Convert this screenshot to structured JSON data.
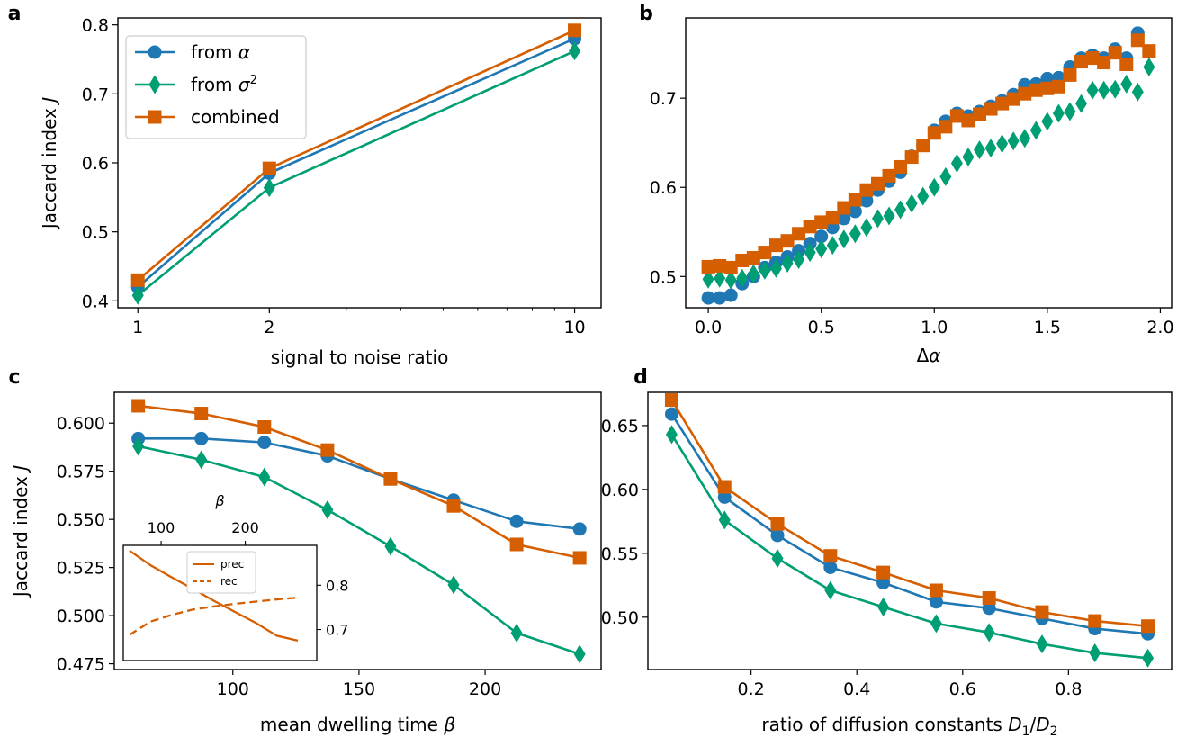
{
  "colors": {
    "alpha": "#1f77b4",
    "sigma": "#009e73",
    "combined": "#d55e00"
  },
  "chart_data": [
    {
      "id": "a",
      "panel_label": "a",
      "type": "line",
      "xscale": "log",
      "xlabel": "signal to noise ratio",
      "ylabel": "Jaccard index J",
      "xlim": [
        0.9,
        11.5
      ],
      "ylim": [
        0.39,
        0.81
      ],
      "xticks": [
        1,
        2,
        10
      ],
      "xtick_labels": [
        "1",
        "2",
        "10"
      ],
      "yticks": [
        0.4,
        0.5,
        0.6,
        0.7,
        0.8
      ],
      "ytick_labels": [
        "0.4",
        "0.5",
        "0.6",
        "0.7",
        "0.8"
      ],
      "legend": {
        "position": "top-left",
        "entries": [
          "from α",
          "from σ²",
          "combined"
        ]
      },
      "series": [
        {
          "key": "alpha",
          "name": "from α",
          "x": [
            1,
            2,
            10
          ],
          "y": [
            0.42,
            0.585,
            0.78
          ]
        },
        {
          "key": "sigma",
          "name": "from σ²",
          "x": [
            1,
            2,
            10
          ],
          "y": [
            0.408,
            0.564,
            0.762
          ]
        },
        {
          "key": "combined",
          "name": "combined",
          "x": [
            1,
            2,
            10
          ],
          "y": [
            0.43,
            0.592,
            0.792
          ]
        }
      ]
    },
    {
      "id": "b",
      "panel_label": "b",
      "type": "scatter",
      "xlabel": "Δα",
      "ylabel": "",
      "xlim": [
        -0.1,
        2.05
      ],
      "ylim": [
        0.465,
        0.79
      ],
      "xticks": [
        0.0,
        0.5,
        1.0,
        1.5,
        2.0
      ],
      "xtick_labels": [
        "0.0",
        "0.5",
        "1.0",
        "1.5",
        "2.0"
      ],
      "yticks": [
        0.5,
        0.6,
        0.7
      ],
      "ytick_labels": [
        "0.5",
        "0.6",
        "0.7"
      ],
      "series": [
        {
          "key": "alpha",
          "x": [
            0.0,
            0.05,
            0.1,
            0.15,
            0.2,
            0.25,
            0.3,
            0.35,
            0.4,
            0.45,
            0.5,
            0.55,
            0.6,
            0.65,
            0.7,
            0.75,
            0.8,
            0.85,
            0.9,
            0.95,
            1.0,
            1.05,
            1.1,
            1.15,
            1.2,
            1.25,
            1.3,
            1.35,
            1.4,
            1.45,
            1.5,
            1.55,
            1.6,
            1.65,
            1.7,
            1.75,
            1.8,
            1.85,
            1.9,
            1.95
          ],
          "y": [
            0.476,
            0.476,
            0.479,
            0.492,
            0.5,
            0.51,
            0.516,
            0.522,
            0.529,
            0.537,
            0.545,
            0.555,
            0.565,
            0.573,
            0.585,
            0.597,
            0.607,
            0.617,
            0.635,
            0.647,
            0.664,
            0.674,
            0.683,
            0.68,
            0.685,
            0.691,
            0.697,
            0.704,
            0.715,
            0.716,
            0.722,
            0.723,
            0.735,
            0.745,
            0.748,
            0.745,
            0.755,
            0.745,
            0.773,
            0.752
          ]
        },
        {
          "key": "sigma",
          "x": [
            0.0,
            0.05,
            0.1,
            0.15,
            0.2,
            0.25,
            0.3,
            0.35,
            0.4,
            0.45,
            0.5,
            0.55,
            0.6,
            0.65,
            0.7,
            0.75,
            0.8,
            0.85,
            0.9,
            0.95,
            1.0,
            1.05,
            1.1,
            1.15,
            1.2,
            1.25,
            1.3,
            1.35,
            1.4,
            1.45,
            1.5,
            1.55,
            1.6,
            1.65,
            1.7,
            1.75,
            1.8,
            1.85,
            1.9,
            1.95
          ],
          "y": [
            0.497,
            0.498,
            0.496,
            0.498,
            0.503,
            0.507,
            0.509,
            0.515,
            0.519,
            0.527,
            0.531,
            0.535,
            0.542,
            0.548,
            0.555,
            0.565,
            0.568,
            0.575,
            0.582,
            0.59,
            0.6,
            0.612,
            0.627,
            0.634,
            0.642,
            0.644,
            0.649,
            0.652,
            0.655,
            0.664,
            0.674,
            0.683,
            0.685,
            0.694,
            0.709,
            0.709,
            0.71,
            0.716,
            0.707,
            0.735
          ]
        },
        {
          "key": "combined",
          "x": [
            0.0,
            0.05,
            0.1,
            0.15,
            0.2,
            0.25,
            0.3,
            0.35,
            0.4,
            0.45,
            0.5,
            0.55,
            0.6,
            0.65,
            0.7,
            0.75,
            0.8,
            0.85,
            0.9,
            0.95,
            1.0,
            1.05,
            1.1,
            1.15,
            1.2,
            1.25,
            1.3,
            1.35,
            1.4,
            1.45,
            1.5,
            1.55,
            1.6,
            1.65,
            1.7,
            1.75,
            1.8,
            1.85,
            1.9,
            1.95
          ],
          "y": [
            0.511,
            0.512,
            0.51,
            0.518,
            0.521,
            0.527,
            0.535,
            0.54,
            0.548,
            0.556,
            0.561,
            0.566,
            0.577,
            0.586,
            0.597,
            0.604,
            0.613,
            0.623,
            0.634,
            0.647,
            0.661,
            0.668,
            0.68,
            0.675,
            0.682,
            0.688,
            0.694,
            0.699,
            0.705,
            0.709,
            0.711,
            0.713,
            0.726,
            0.741,
            0.745,
            0.74,
            0.751,
            0.738,
            0.765,
            0.753
          ]
        }
      ]
    },
    {
      "id": "c",
      "panel_label": "c",
      "type": "line",
      "xlabel": "mean dwelling time β",
      "ylabel": "Jaccard index J",
      "xlim": [
        53,
        246
      ],
      "ylim": [
        0.472,
        0.616
      ],
      "xticks": [
        100,
        150,
        200
      ],
      "xtick_labels": [
        "100",
        "150",
        "200"
      ],
      "yticks": [
        0.475,
        0.5,
        0.525,
        0.55,
        0.575,
        0.6
      ],
      "ytick_labels": [
        "0.475",
        "0.500",
        "0.525",
        "0.550",
        "0.575",
        "0.600"
      ],
      "series": [
        {
          "key": "alpha",
          "x": [
            62.5,
            87.5,
            112.5,
            137.5,
            162.5,
            187.5,
            212.5,
            237.5
          ],
          "y": [
            0.592,
            0.592,
            0.59,
            0.583,
            0.571,
            0.56,
            0.549,
            0.545
          ]
        },
        {
          "key": "sigma",
          "x": [
            62.5,
            87.5,
            112.5,
            137.5,
            162.5,
            187.5,
            212.5,
            237.5
          ],
          "y": [
            0.588,
            0.581,
            0.572,
            0.555,
            0.536,
            0.516,
            0.491,
            0.48
          ]
        },
        {
          "key": "combined",
          "x": [
            62.5,
            87.5,
            112.5,
            137.5,
            162.5,
            187.5,
            212.5,
            237.5
          ],
          "y": [
            0.609,
            0.605,
            0.598,
            0.586,
            0.571,
            0.557,
            0.537,
            0.53
          ]
        }
      ],
      "inset": {
        "xlabel": "β",
        "xlim": [
          55,
          285
        ],
        "ylim": [
          0.63,
          0.89
        ],
        "xticks": [
          100,
          200
        ],
        "xtick_labels": [
          "100",
          "200"
        ],
        "yticks": [
          0.7,
          0.8
        ],
        "ytick_labels": [
          "0.7",
          "0.8"
        ],
        "legend_entries": [
          "prec",
          "rec"
        ],
        "series": [
          {
            "name": "prec",
            "style": "solid",
            "x": [
              62.5,
              87.5,
              112.5,
              137.5,
              162.5,
              187.5,
              212.5,
              237.5,
              262.5
            ],
            "y": [
              0.878,
              0.845,
              0.818,
              0.792,
              0.765,
              0.74,
              0.715,
              0.686,
              0.675
            ]
          },
          {
            "name": "rec",
            "style": "dashed",
            "x": [
              62.5,
              87.5,
              112.5,
              137.5,
              162.5,
              187.5,
              212.5,
              237.5,
              262.5
            ],
            "y": [
              0.688,
              0.718,
              0.733,
              0.745,
              0.752,
              0.758,
              0.763,
              0.768,
              0.772
            ]
          }
        ]
      }
    },
    {
      "id": "d",
      "panel_label": "d",
      "type": "line",
      "xlabel": "ratio of diffusion constants D1/D2",
      "ylabel": "",
      "xlim": [
        0.005,
        0.995
      ],
      "ylim": [
        0.459,
        0.676
      ],
      "xticks": [
        0.2,
        0.4,
        0.6,
        0.8
      ],
      "xtick_labels": [
        "0.2",
        "0.4",
        "0.6",
        "0.8"
      ],
      "yticks": [
        0.5,
        0.55,
        0.6,
        0.65
      ],
      "ytick_labels": [
        "0.50",
        "0.55",
        "0.60",
        "0.65"
      ],
      "series": [
        {
          "key": "alpha",
          "x": [
            0.05,
            0.15,
            0.25,
            0.35,
            0.45,
            0.55,
            0.65,
            0.75,
            0.85,
            0.95
          ],
          "y": [
            0.659,
            0.594,
            0.564,
            0.539,
            0.527,
            0.512,
            0.507,
            0.499,
            0.491,
            0.487
          ]
        },
        {
          "key": "sigma",
          "x": [
            0.05,
            0.15,
            0.25,
            0.35,
            0.45,
            0.55,
            0.65,
            0.75,
            0.85,
            0.95
          ],
          "y": [
            0.643,
            0.576,
            0.546,
            0.521,
            0.508,
            0.495,
            0.488,
            0.479,
            0.472,
            0.468
          ]
        },
        {
          "key": "combined",
          "x": [
            0.05,
            0.15,
            0.25,
            0.35,
            0.45,
            0.55,
            0.65,
            0.75,
            0.85,
            0.95
          ],
          "y": [
            0.67,
            0.602,
            0.573,
            0.548,
            0.535,
            0.521,
            0.515,
            0.504,
            0.497,
            0.493
          ]
        }
      ]
    }
  ]
}
